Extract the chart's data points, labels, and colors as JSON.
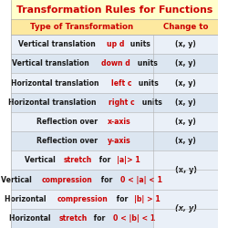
{
  "title": "Transformation Rules for Functions",
  "title_color": "#cc0000",
  "title_bg": "#ffffcc",
  "header_bg": "#fde9a0",
  "col1_header": "Type of Transformation",
  "col2_header": "Change to",
  "col_header_color": "#cc0000",
  "row_bg_alt1": "#dce6f1",
  "row_bg_alt2": "#eaf0f8",
  "red": "#cc0000",
  "black": "#1a1a1a",
  "border_color": "#b0b0b0",
  "title_fontsize": 7.8,
  "header_fontsize": 6.2,
  "row_fontsize": 5.6,
  "rows": [
    {
      "parts": [
        [
          "Vertical translation ",
          "black"
        ],
        [
          "up d",
          "red"
        ],
        [
          " units",
          "black"
        ]
      ],
      "right": [
        "(x, y)"
      ],
      "bg": "alt2"
    },
    {
      "parts": [
        [
          "Vertical translation ",
          "black"
        ],
        [
          "down d",
          "red"
        ],
        [
          " units",
          "black"
        ]
      ],
      "right": [
        "(x, y)"
      ],
      "bg": "alt1"
    },
    {
      "parts": [
        [
          "Horizontal translation ",
          "black"
        ],
        [
          "left c",
          "red"
        ],
        [
          " units",
          "black"
        ]
      ],
      "right": [
        "(x, y)"
      ],
      "bg": "alt2"
    },
    {
      "parts": [
        [
          "Horizontal translation ",
          "black"
        ],
        [
          "right c",
          "red"
        ],
        [
          " units",
          "black"
        ]
      ],
      "right": [
        "(x, y)"
      ],
      "bg": "alt1"
    },
    {
      "parts": [
        [
          "Reflection over ",
          "black"
        ],
        [
          "x-axis",
          "red"
        ]
      ],
      "right": [
        "(x, y)"
      ],
      "bg": "alt2"
    },
    {
      "parts": [
        [
          "Reflection over ",
          "black"
        ],
        [
          "y-axis",
          "red"
        ]
      ],
      "right": [
        "(x, y)"
      ],
      "bg": "alt1"
    },
    {
      "parts": [
        [
          "Vertical ",
          "black"
        ],
        [
          "stretch",
          "red"
        ],
        [
          " for ",
          "black"
        ],
        [
          "|a|> 1",
          "red"
        ]
      ],
      "right": null,
      "bg": "alt2",
      "merge_group": 0
    },
    {
      "parts": [
        [
          "Vertical ",
          "black"
        ],
        [
          "compression",
          "red"
        ],
        [
          " for ",
          "black"
        ],
        [
          "0 < |a| < 1",
          "red"
        ]
      ],
      "right": null,
      "bg": "alt1",
      "merge_group": 0
    },
    {
      "parts": [
        [
          "Horizontal ",
          "black"
        ],
        [
          "compression",
          "red"
        ],
        [
          " for ",
          "black"
        ],
        [
          "|b| > 1",
          "red"
        ]
      ],
      "right": null,
      "bg": "alt2",
      "merge_group": 1
    },
    {
      "parts": [
        [
          "Horizontal ",
          "black"
        ],
        [
          "stretch",
          "red"
        ],
        [
          " for ",
          "black"
        ],
        [
          "0 < |b| < 1",
          "red"
        ]
      ],
      "right": null,
      "bg": "alt1",
      "merge_group": 1
    }
  ],
  "merge_groups": [
    {
      "rows": [
        6,
        7
      ],
      "text": "(x, y)",
      "italic": false
    },
    {
      "rows": [
        8,
        9
      ],
      "text": "(x, y)",
      "italic": true
    }
  ]
}
